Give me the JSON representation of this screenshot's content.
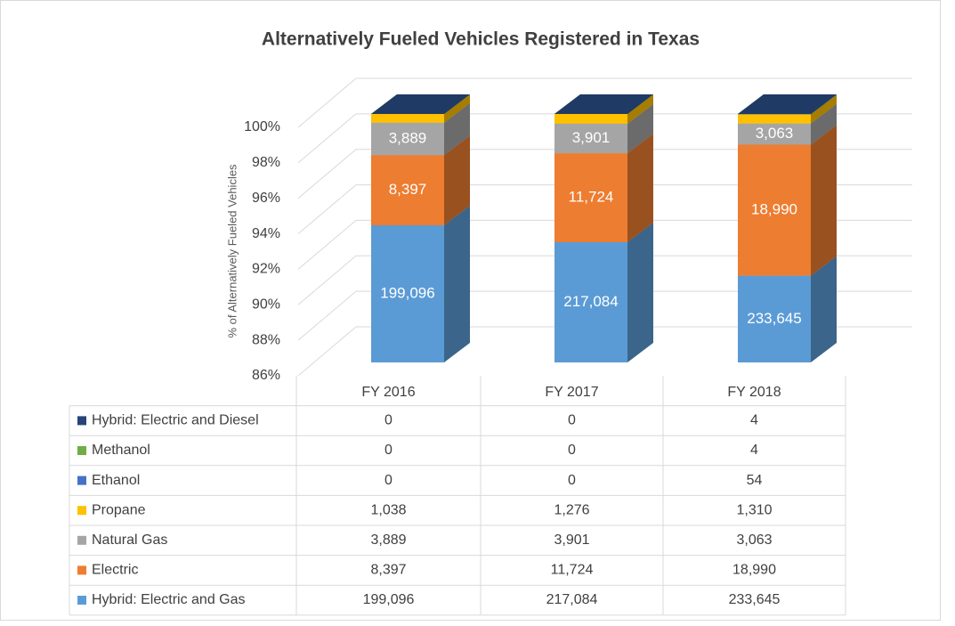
{
  "chart_data": {
    "type": "bar3d",
    "stacking": "percent",
    "title": "Alternatively Fueled Vehicles Registered in Texas",
    "y_label": "% of Alternatively Fueled Vehicles",
    "categories": [
      "FY 2016",
      "FY 2017",
      "FY 2018"
    ],
    "ylim": [
      86,
      100
    ],
    "yticks": [
      {
        "value": 86,
        "label": "86%"
      },
      {
        "value": 88,
        "label": "88%"
      },
      {
        "value": 90,
        "label": "90%"
      },
      {
        "value": 92,
        "label": "92%"
      },
      {
        "value": 94,
        "label": "94%"
      },
      {
        "value": 96,
        "label": "96%"
      },
      {
        "value": 98,
        "label": "98%"
      },
      {
        "value": 100,
        "label": "100%"
      }
    ],
    "grid": true,
    "series": [
      {
        "name": "Hybrid: Electric and Gas",
        "color": "#5b9bd5",
        "values": [
          199096,
          217084,
          233645
        ],
        "value_labels": [
          "199,096",
          "217,084",
          "233,645"
        ]
      },
      {
        "name": "Electric",
        "color": "#ed7d31",
        "values": [
          8397,
          11724,
          18990
        ],
        "value_labels": [
          "8,397",
          "11,724",
          "18,990"
        ]
      },
      {
        "name": "Natural Gas",
        "color": "#a5a5a5",
        "values": [
          3889,
          3901,
          3063
        ],
        "value_labels": [
          "3,889",
          "3,901",
          "3,063"
        ]
      },
      {
        "name": "Propane",
        "color": "#ffc000",
        "values": [
          1038,
          1276,
          1310
        ],
        "value_labels": [
          "1,038",
          "1,276",
          "1,310"
        ]
      },
      {
        "name": "Ethanol",
        "color": "#4472c4",
        "values": [
          0,
          0,
          54
        ]
      },
      {
        "name": "Methanol",
        "color": "#70ad47",
        "values": [
          0,
          0,
          4
        ]
      },
      {
        "name": "Hybrid: Electric and Diesel",
        "color": "#264478",
        "values": [
          0,
          0,
          4
        ]
      }
    ]
  }
}
